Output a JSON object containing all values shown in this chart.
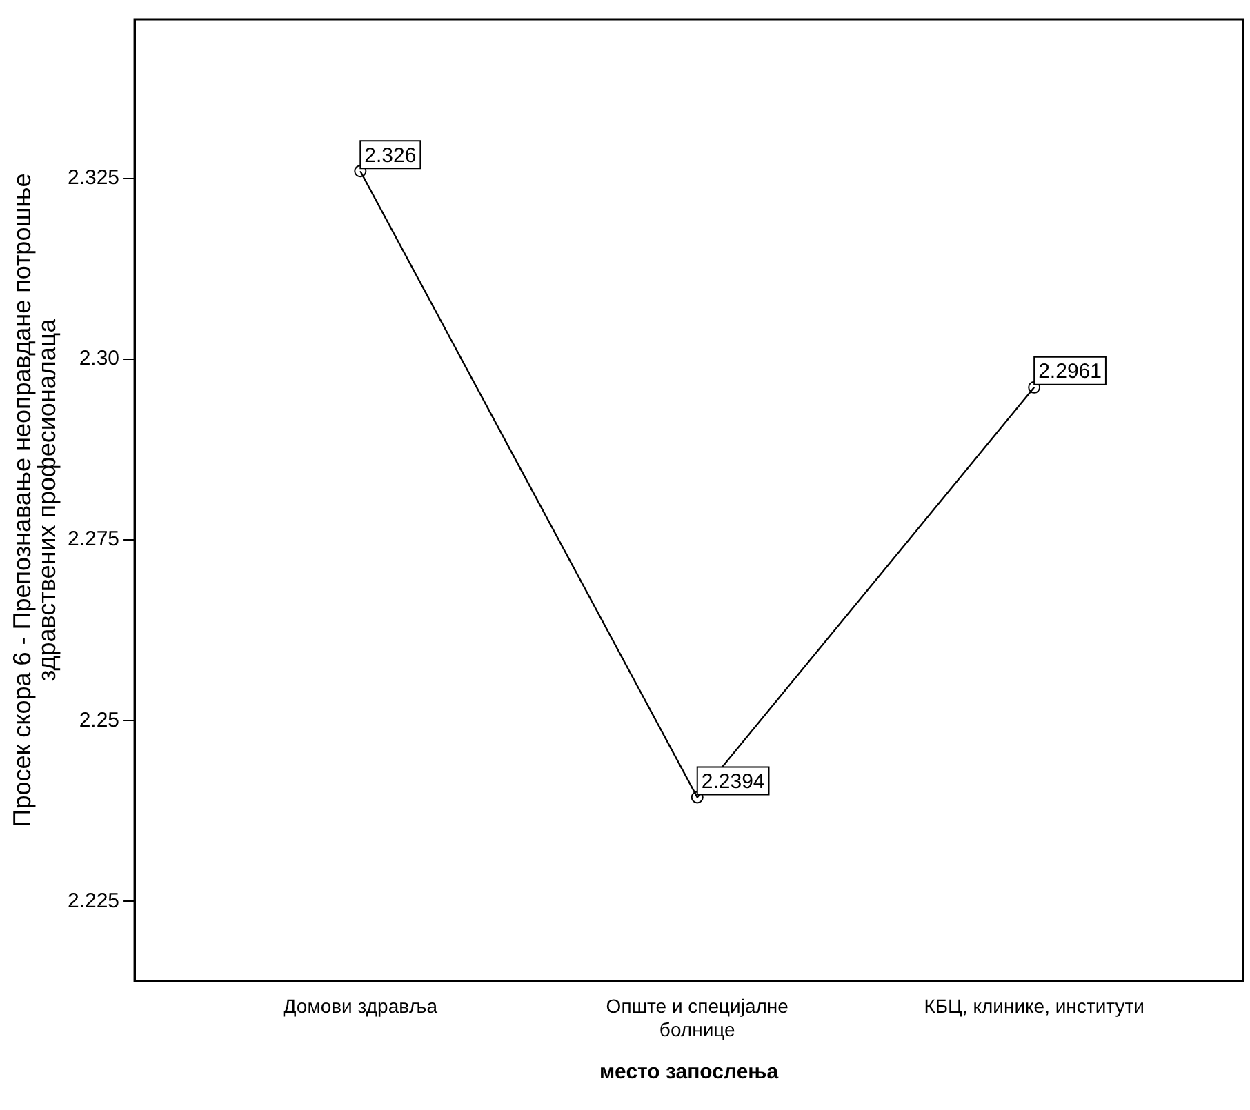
{
  "chart_data": {
    "type": "line",
    "xlabel": "место запослења",
    "ylabel": "Просек скора 6 - Препознавање неоправдане потрошње здравствених професионалаца",
    "categories": [
      "Домови здравља",
      "Опште и специјалне болнице",
      "КБЦ, клинике, институти"
    ],
    "series": [
      {
        "color": "#000000",
        "values": [
          2.326,
          2.2394,
          2.2961
        ]
      }
    ],
    "ylim": [
      2.214,
      2.347
    ],
    "yticks": [
      2.225,
      {
        "value": 2.25,
        "label": "2.25"
      },
      2.275,
      {
        "value": 2.3,
        "label": "2.30"
      },
      2.325
    ],
    "data_labels": true,
    "marker": "circle",
    "line_style": "solid",
    "grid": false,
    "legend": false
  }
}
